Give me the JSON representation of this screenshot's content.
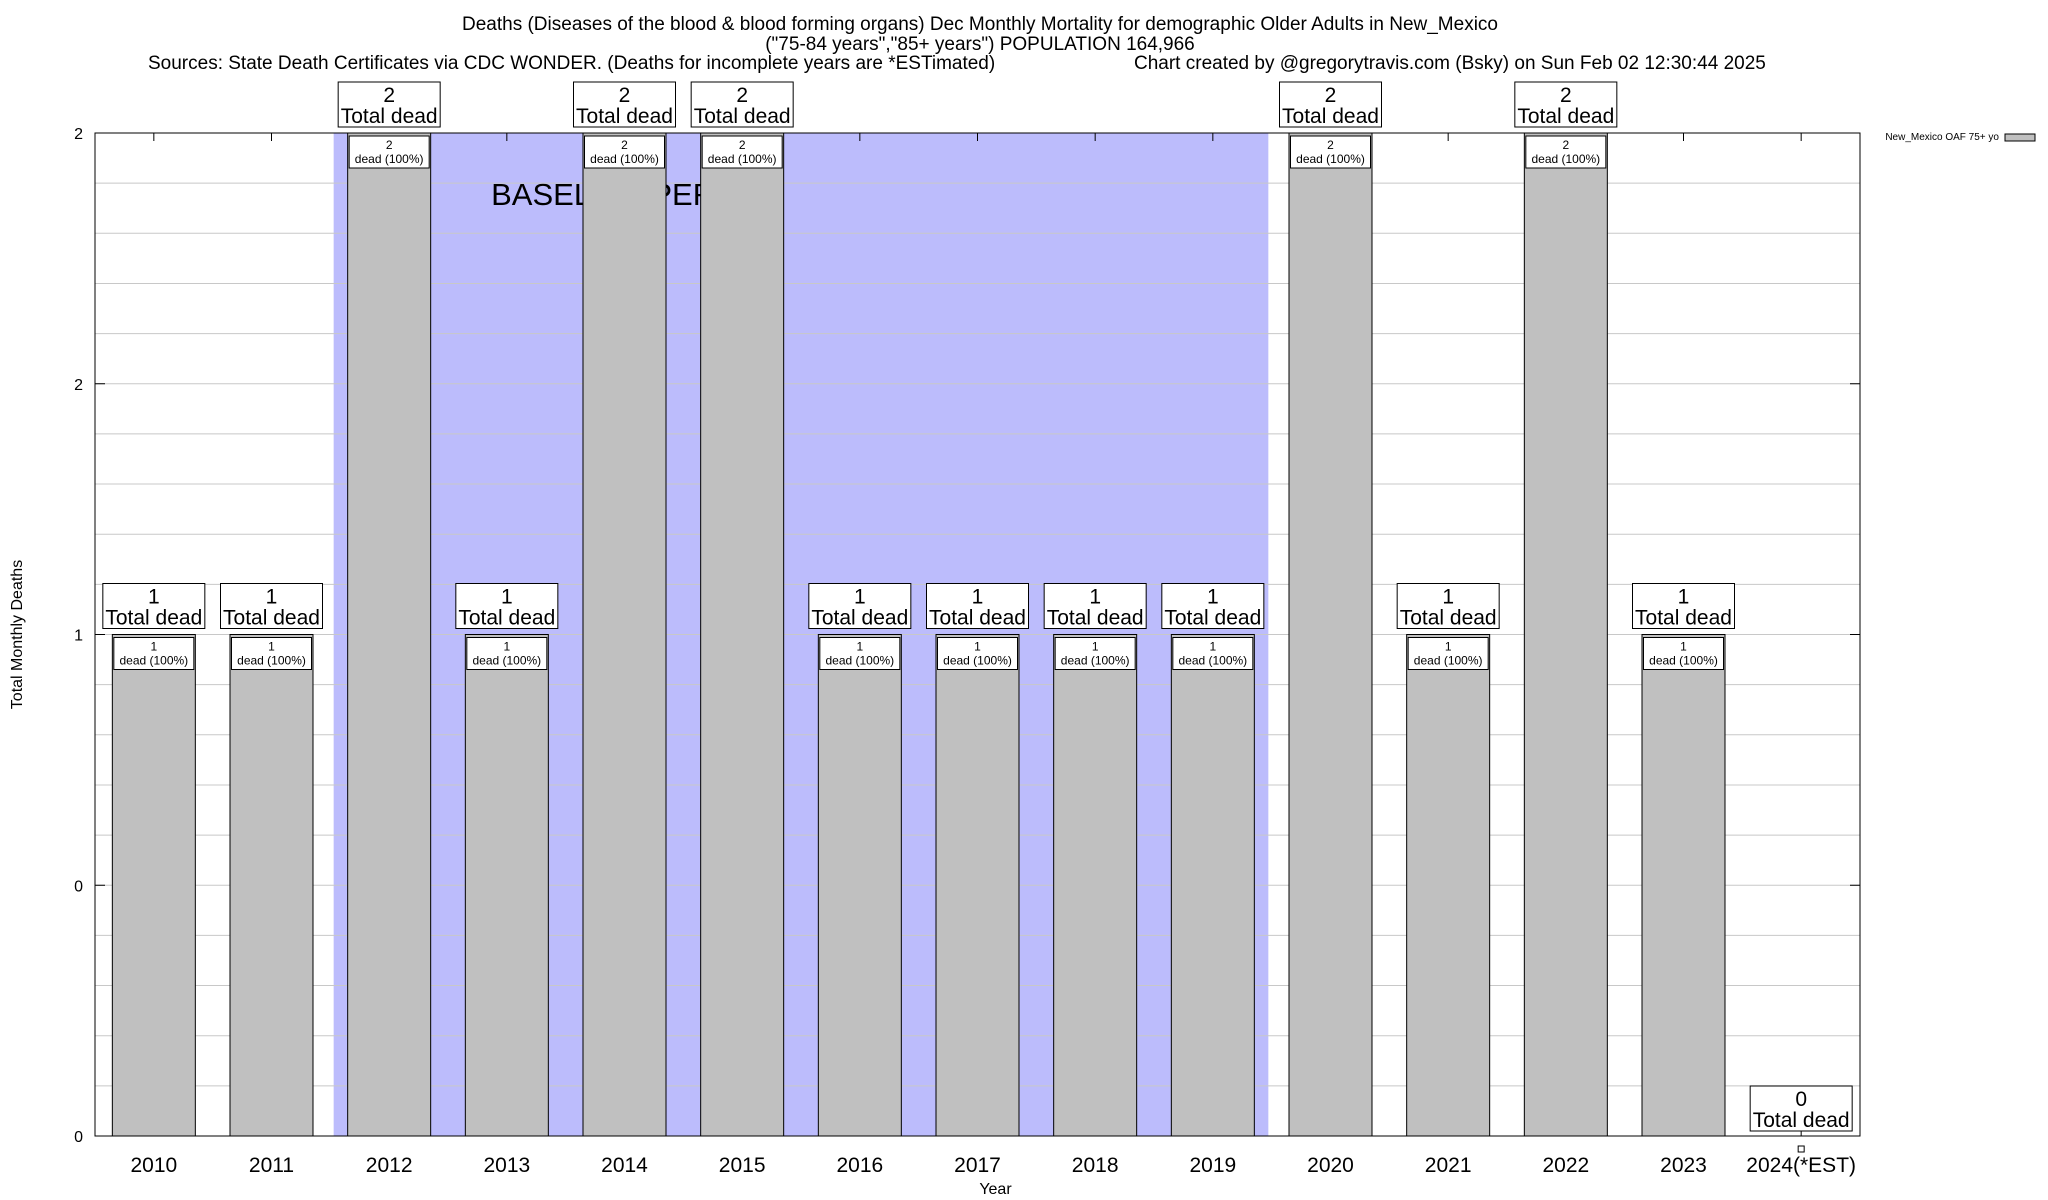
{
  "header": {
    "title_line1": "Deaths (Diseases of the blood & blood forming organs) Dec Monthly Mortality for demographic Older Adults in New_Mexico",
    "title_line2": "(\"75-84 years\",\"85+ years\") POPULATION 164,966",
    "sources": "Sources: State Death Certificates via CDC WONDER. (Deaths for incomplete years are *ESTimated)",
    "credit": "Chart created by @gregorytravis.com (Bsky) on Sun Feb 02 12:30:44 2025"
  },
  "chart_data": {
    "type": "bar",
    "categories": [
      "2010",
      "2011",
      "2012",
      "2013",
      "2014",
      "2015",
      "2016",
      "2017",
      "2018",
      "2019",
      "2020",
      "2021",
      "2022",
      "2023",
      "2024(*EST)"
    ],
    "series": [
      {
        "name": "New_Mexico OAF 75+ yo",
        "values": [
          1,
          1,
          2,
          1,
          2,
          2,
          1,
          1,
          1,
          1,
          2,
          1,
          2,
          1,
          0
        ],
        "inner_labels": [
          "1\ndead (100%)",
          "1\ndead (100%)",
          "2\ndead (100%)",
          "1\ndead (100%)",
          "2\ndead (100%)",
          "2\ndead (100%)",
          "1\ndead (100%)",
          "1\ndead (100%)",
          "1\ndead (100%)",
          "1\ndead (100%)",
          "2\ndead (100%)",
          "1\ndead (100%)",
          "2\ndead (100%)",
          "1\ndead (100%)",
          ""
        ],
        "total_labels": [
          "1\nTotal dead",
          "1\nTotal dead",
          "2\nTotal dead",
          "1\nTotal dead",
          "2\nTotal dead",
          "2\nTotal dead",
          "1\nTotal dead",
          "1\nTotal dead",
          "1\nTotal dead",
          "1\nTotal dead",
          "2\nTotal dead",
          "1\nTotal dead",
          "2\nTotal dead",
          "1\nTotal dead",
          "0\nTotal dead"
        ]
      }
    ],
    "xlabel": "Year",
    "ylabel": "Total Monthly Deaths",
    "ylim": [
      0,
      2
    ],
    "yticks": [
      0,
      0.5,
      1,
      1.5,
      2
    ],
    "ytick_labels": [
      "0",
      "0",
      "1",
      "2",
      "2"
    ],
    "baseline_period": {
      "label": "BASELINE PERIOD",
      "from": "2012",
      "to": "2019",
      "color": "#bcbcfc"
    },
    "bar_color": "#c0c0c0",
    "grid": true,
    "legend_position": "top-right"
  }
}
